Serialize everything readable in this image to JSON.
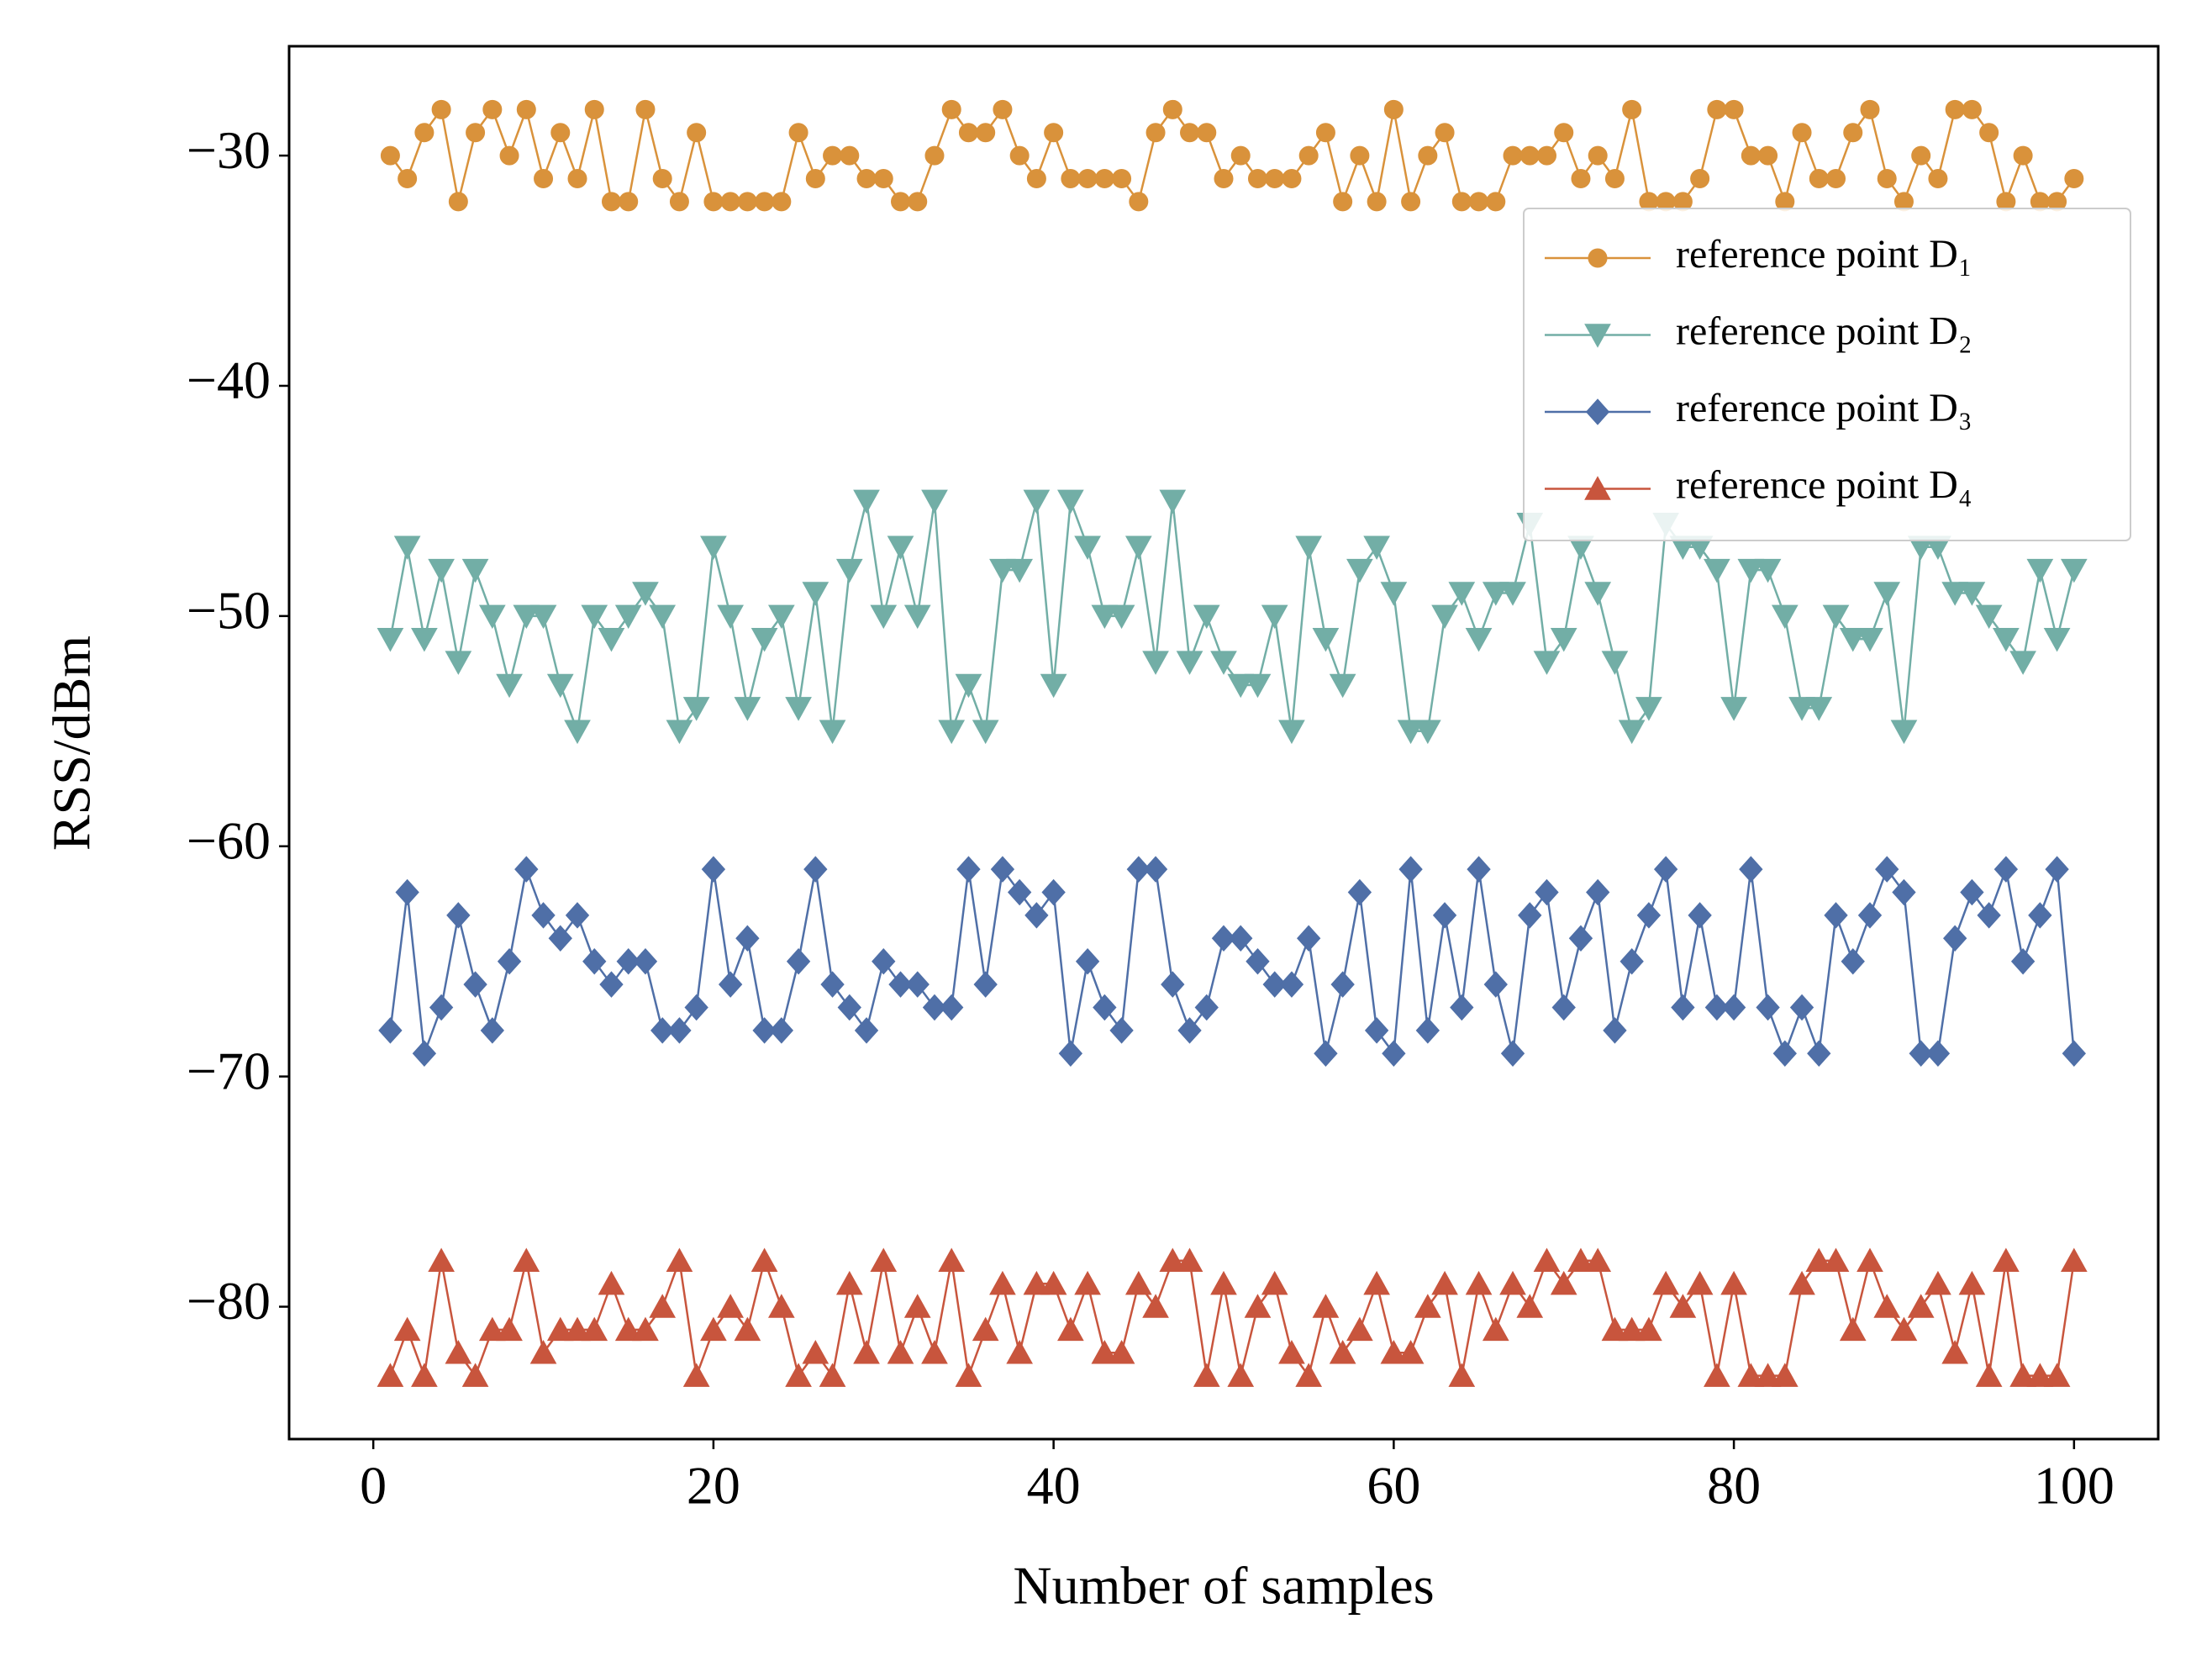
{
  "chart_data": {
    "type": "line",
    "xlabel": "Number of samples",
    "ylabel": "RSS/dBm",
    "x": [
      1,
      2,
      3,
      4,
      5,
      6,
      7,
      8,
      9,
      10,
      11,
      12,
      13,
      14,
      15,
      16,
      17,
      18,
      19,
      20,
      21,
      22,
      23,
      24,
      25,
      26,
      27,
      28,
      29,
      30,
      31,
      32,
      33,
      34,
      35,
      36,
      37,
      38,
      39,
      40,
      41,
      42,
      43,
      44,
      45,
      46,
      47,
      48,
      49,
      50,
      51,
      52,
      53,
      54,
      55,
      56,
      57,
      58,
      59,
      60,
      61,
      62,
      63,
      64,
      65,
      66,
      67,
      68,
      69,
      70,
      71,
      72,
      73,
      74,
      75,
      76,
      77,
      78,
      79,
      80,
      81,
      82,
      83,
      84,
      85,
      86,
      87,
      88,
      89,
      90,
      91,
      92,
      93,
      94,
      95,
      96,
      97,
      98,
      99,
      100
    ],
    "series": [
      {
        "name": "reference point D₁",
        "color": "#d9923b",
        "marker": "o",
        "values": [
          -30,
          -31,
          -29,
          -28,
          -32,
          -29,
          -28,
          -30,
          -28,
          -31,
          -29,
          -31,
          -28,
          -32,
          -32,
          -28,
          -31,
          -32,
          -29,
          -32,
          -32,
          -32,
          -32,
          -32,
          -29,
          -31,
          -30,
          -30,
          -31,
          -31,
          -32,
          -32,
          -30,
          -28,
          -29,
          -29,
          -28,
          -30,
          -31,
          -29,
          -31,
          -31,
          -31,
          -31,
          -32,
          -29,
          -28,
          -29,
          -29,
          -31,
          -30,
          -31,
          -31,
          -31,
          -30,
          -29,
          -32,
          -30,
          -32,
          -28,
          -32,
          -30,
          -29,
          -32,
          -32,
          -32,
          -30,
          -30,
          -30,
          -29,
          -31,
          -30,
          -31,
          -28,
          -32,
          -32,
          -32,
          -31,
          -28,
          -28,
          -30,
          -30,
          -32,
          -29,
          -31,
          -31,
          -29,
          -28,
          -31,
          -32,
          -30,
          -31,
          -28,
          -28,
          -29,
          -32,
          -30,
          -32,
          -32,
          -31
        ]
      },
      {
        "name": "reference point D₂",
        "color": "#72aea6",
        "marker": "v",
        "values": [
          -51,
          -47,
          -51,
          -48,
          -52,
          -48,
          -50,
          -53,
          -50,
          -50,
          -53,
          -55,
          -50,
          -51,
          -50,
          -49,
          -50,
          -55,
          -54,
          -47,
          -50,
          -54,
          -51,
          -50,
          -54,
          -49,
          -55,
          -48,
          -45,
          -50,
          -47,
          -50,
          -45,
          -55,
          -53,
          -55,
          -48,
          -48,
          -45,
          -53,
          -45,
          -47,
          -50,
          -50,
          -47,
          -52,
          -45,
          -52,
          -50,
          -52,
          -53,
          -53,
          -50,
          -55,
          -47,
          -51,
          -53,
          -48,
          -47,
          -49,
          -55,
          -55,
          -50,
          -49,
          -51,
          -49,
          -49,
          -46,
          -52,
          -51,
          -47,
          -49,
          -52,
          -55,
          -54,
          -46,
          -47,
          -47,
          -48,
          -54,
          -48,
          -48,
          -50,
          -54,
          -54,
          -50,
          -51,
          -51,
          -49,
          -55,
          -47,
          -47,
          -49,
          -49,
          -50,
          -51,
          -52,
          -48,
          -51,
          -48
        ]
      },
      {
        "name": "reference point D₃",
        "color": "#4f6fa7",
        "marker": "D",
        "values": [
          -68,
          -62,
          -69,
          -67,
          -63,
          -66,
          -68,
          -65,
          -61,
          -63,
          -64,
          -63,
          -65,
          -66,
          -65,
          -65,
          -68,
          -68,
          -67,
          -61,
          -66,
          -64,
          -68,
          -68,
          -65,
          -61,
          -66,
          -67,
          -68,
          -65,
          -66,
          -66,
          -67,
          -67,
          -61,
          -66,
          -61,
          -62,
          -63,
          -62,
          -69,
          -65,
          -67,
          -68,
          -61,
          -61,
          -66,
          -68,
          -67,
          -64,
          -64,
          -65,
          -66,
          -66,
          -64,
          -69,
          -66,
          -62,
          -68,
          -69,
          -61,
          -68,
          -63,
          -67,
          -61,
          -66,
          -69,
          -63,
          -62,
          -67,
          -64,
          -62,
          -68,
          -65,
          -63,
          -61,
          -67,
          -63,
          -67,
          -67,
          -61,
          -67,
          -69,
          -67,
          -69,
          -63,
          -65,
          -63,
          -61,
          -62,
          -69,
          -69,
          -64,
          -62,
          -63,
          -61,
          -65,
          -63,
          -61,
          -69
        ]
      },
      {
        "name": "reference point D₄",
        "color": "#c8553d",
        "marker": "^",
        "values": [
          -83,
          -81,
          -83,
          -78,
          -82,
          -83,
          -81,
          -81,
          -78,
          -82,
          -81,
          -81,
          -81,
          -79,
          -81,
          -81,
          -80,
          -78,
          -83,
          -81,
          -80,
          -81,
          -78,
          -80,
          -83,
          -82,
          -83,
          -79,
          -82,
          -78,
          -82,
          -80,
          -82,
          -78,
          -83,
          -81,
          -79,
          -82,
          -79,
          -79,
          -81,
          -79,
          -82,
          -82,
          -79,
          -80,
          -78,
          -78,
          -83,
          -79,
          -83,
          -80,
          -79,
          -82,
          -83,
          -80,
          -82,
          -81,
          -79,
          -82,
          -82,
          -80,
          -79,
          -83,
          -79,
          -81,
          -79,
          -80,
          -78,
          -79,
          -78,
          -78,
          -81,
          -81,
          -81,
          -79,
          -80,
          -79,
          -83,
          -79,
          -83,
          -83,
          -83,
          -79,
          -78,
          -78,
          -81,
          -78,
          -80,
          -81,
          -80,
          -79,
          -82,
          -79,
          -83,
          -78,
          -83,
          -83,
          -83,
          -78
        ]
      }
    ],
    "xlim": [
      -4.95,
      104.95
    ],
    "xticks": [
      0,
      20,
      40,
      60,
      80,
      100
    ],
    "ylim": [
      -85.75,
      -25.25
    ],
    "yticks": [
      {
        "value": -80,
        "label": "−80"
      },
      {
        "value": -70,
        "label": "−70"
      },
      {
        "value": -60,
        "label": "−60"
      },
      {
        "value": -50,
        "label": "−50"
      },
      {
        "value": -40,
        "label": "−40"
      },
      {
        "value": -30,
        "label": "−30"
      }
    ],
    "legend": "upper right"
  }
}
